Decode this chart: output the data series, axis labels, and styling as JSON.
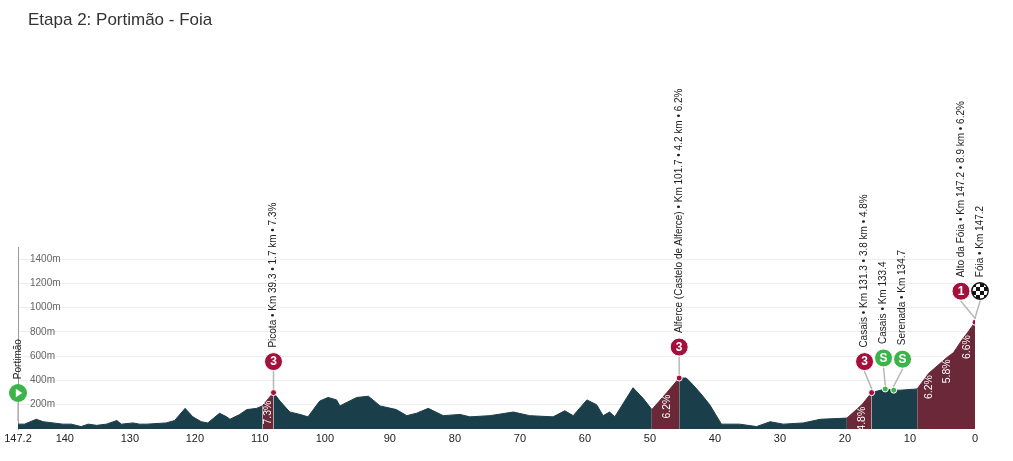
{
  "chart_data": {
    "type": "area",
    "title": "Etapa 2: Portimão - Foia",
    "x": [
      147.2,
      146.2,
      144.4,
      143.3,
      141.8,
      140.3,
      139.0,
      137.5,
      136.4,
      135.1,
      133.6,
      132.0,
      131.3,
      129.5,
      128.5,
      127.4,
      124.4,
      123.1,
      121.5,
      120.3,
      119.0,
      118.0,
      116.2,
      115.1,
      114.6,
      113.1,
      112.0,
      110.5,
      109.6,
      108.7,
      107.9,
      106.9,
      105.4,
      103.8,
      102.6,
      100.8,
      99.5,
      98.2,
      97.7,
      95.1,
      93.3,
      91.5,
      89.0,
      87.4,
      85.9,
      84.1,
      81.8,
      79.2,
      77.7,
      74.6,
      71.0,
      68.5,
      64.9,
      63.1,
      61.8,
      59.7,
      58.2,
      57.2,
      56.2,
      55.4,
      52.6,
      51.0,
      49.7,
      47.4,
      45.5,
      44.4,
      43.3,
      42.0,
      40.8,
      39.0,
      36.2,
      33.6,
      31.5,
      29.5,
      26.4,
      23.8,
      19.7,
      17.4,
      15.9,
      13.8,
      12.5,
      11.5,
      8.9,
      7.1,
      4.3,
      3.3,
      1.8,
      1.2,
      0
    ],
    "series": [
      {
        "color": "#1b3f4a",
        "values": [
          40,
          40,
          80,
          60,
          50,
          40,
          40,
          20,
          40,
          30,
          40,
          70,
          40,
          50,
          40,
          40,
          50,
          70,
          170,
          100,
          60,
          50,
          130,
          100,
          80,
          120,
          160,
          170,
          190,
          null,
          300,
          230,
          140,
          120,
          100,
          230,
          260,
          240,
          190,
          260,
          270,
          190,
          160,
          110,
          130,
          170,
          110,
          120,
          100,
          110,
          140,
          110,
          100,
          150,
          110,
          240,
          200,
          110,
          140,
          100,
          340,
          250,
          160,
          null,
          420,
          420,
          360,
          280,
          200,
          40,
          40,
          20,
          60,
          40,
          50,
          80,
          90,
          null,
          300,
          330,
          320,
          320,
          330,
          null,
          null,
          null,
          null,
          null,
          null
        ]
      },
      {
        "color": "#6b2839",
        "values": [
          null,
          null,
          null,
          null,
          null,
          null,
          null,
          null,
          null,
          null,
          null,
          null,
          null,
          null,
          null,
          null,
          null,
          null,
          null,
          null,
          null,
          null,
          null,
          null,
          null,
          null,
          null,
          null,
          190,
          250,
          300,
          null,
          null,
          null,
          null,
          null,
          null,
          null,
          null,
          null,
          null,
          null,
          null,
          null,
          null,
          null,
          null,
          null,
          null,
          null,
          null,
          null,
          null,
          null,
          null,
          null,
          null,
          null,
          null,
          null,
          null,
          null,
          160,
          300,
          420,
          null,
          null,
          null,
          null,
          null,
          null,
          null,
          null,
          null,
          null,
          null,
          90,
          200,
          300,
          null,
          null,
          null,
          330,
          460,
          590,
          630,
          750,
          790,
          880
        ]
      },
      {
        "type": "scatter",
        "x": [
          107.9,
          45.5,
          15.9,
          13.8,
          12.5,
          0
        ],
        "values": [
          300,
          420,
          300,
          330,
          320,
          880
        ],
        "colors": [
          "#a3103c",
          "#a3103c",
          "#a3103c",
          "#3bb44a",
          "#3bb44a",
          "#a3103c"
        ],
        "marker": "circle"
      }
    ],
    "xlim": [
      147.2,
      0
    ],
    "xticks": [
      147.2,
      140,
      130,
      120,
      110,
      100,
      90,
      80,
      70,
      60,
      50,
      40,
      30,
      20,
      10,
      0
    ],
    "ylim": [
      0,
      1500
    ],
    "yticks": [
      {
        "value": 200,
        "label": "200m"
      },
      {
        "value": 400,
        "label": "400m"
      },
      {
        "value": 600,
        "label": "600m"
      },
      {
        "value": 800,
        "label": "800m"
      },
      {
        "value": 1000,
        "label": "1000m"
      },
      {
        "value": 1200,
        "label": "1200m"
      },
      {
        "value": 1400,
        "label": "1400m"
      }
    ],
    "grid": "y",
    "annotations": [
      "Portimão",
      "Picota • Km 39.3 • 1.7 km • 7.3%",
      "Alferce (Castelo de Alferce) • Km 101.7 • 4.2 km • 6.2%",
      "Casais • Km 131.3 • 3.8 km • 4.8%",
      "Casais • Km 133.4",
      "Serenada • Km 134.7",
      "Alto da Fóia • Km 147.2 • 8.9 km • 6.2%",
      "Fóia • Km 147.2",
      {
        "text": "3",
        "x": 107.9,
        "y": 300
      },
      {
        "text": "3",
        "x": 45.5,
        "y": 420
      },
      {
        "text": "3",
        "x": 15.9,
        "y": 300
      },
      {
        "text": "S",
        "x": 13.8,
        "y": 330
      },
      {
        "text": "S",
        "x": 12.5,
        "y": 320
      },
      {
        "text": "1",
        "x": 0,
        "y": 880
      },
      {
        "text": "7.3%",
        "x": 108.7,
        "y": 250
      },
      {
        "text": "6.2%",
        "x": 47.4,
        "y": 300
      },
      {
        "text": "4.8%",
        "x": 17.4,
        "y": 200
      },
      {
        "text": "6.2%",
        "x": 7.1,
        "y": 460
      },
      {
        "text": "5.8%",
        "x": 4.3,
        "y": 590
      },
      {
        "text": "6.6%",
        "x": 1.2,
        "y": 790
      }
    ]
  }
}
